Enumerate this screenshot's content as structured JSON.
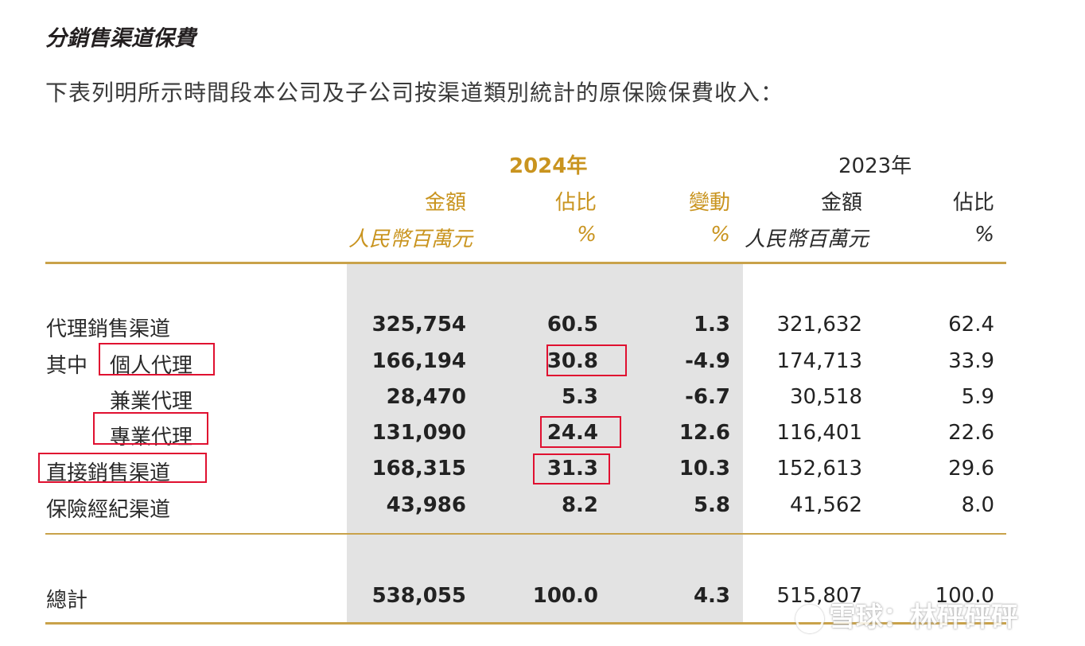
{
  "title": "分銷售渠道保費",
  "intro": "下表列明所示時間段本公司及子公司按渠道類別統計的原保險保費收入：",
  "header": {
    "year_2024": "2024年",
    "year_2023": "2023年",
    "col_amount_2024": "金額",
    "col_share_2024": "佔比",
    "col_change": "變動",
    "col_amount_2023": "金額",
    "col_share_2023": "佔比",
    "unit_amount_2024": "人民幣百萬元",
    "unit_share_2024": "%",
    "unit_change": "%",
    "unit_amount_2023": "人民幣百萬元",
    "unit_share_2023": "%"
  },
  "rows": [
    {
      "prefix": "",
      "label": "代理銷售渠道",
      "amt24": "325,754",
      "pct24": "60.5",
      "chg": "1.3",
      "amt23": "321,632",
      "pct23": "62.4"
    },
    {
      "prefix": "其中",
      "label": "個人代理",
      "amt24": "166,194",
      "pct24": "30.8",
      "chg": "-4.9",
      "amt23": "174,713",
      "pct23": "33.9"
    },
    {
      "prefix": "",
      "label": "兼業代理",
      "amt24": "28,470",
      "pct24": "5.3",
      "chg": "-6.7",
      "amt23": "30,518",
      "pct23": "5.9"
    },
    {
      "prefix": "",
      "label": "專業代理",
      "amt24": "131,090",
      "pct24": "24.4",
      "chg": "12.6",
      "amt23": "116,401",
      "pct23": "22.6"
    },
    {
      "prefix": "",
      "label": "直接銷售渠道",
      "amt24": "168,315",
      "pct24": "31.3",
      "chg": "10.3",
      "amt23": "152,613",
      "pct23": "29.6"
    },
    {
      "prefix": "",
      "label": "保險經紀渠道",
      "amt24": "43,986",
      "pct24": "8.2",
      "chg": "5.8",
      "amt23": "41,562",
      "pct23": "8.0"
    }
  ],
  "total": {
    "label": "總計",
    "amt24": "538,055",
    "pct24": "100.0",
    "chg": "4.3",
    "amt23": "515,807",
    "pct23": "100.0"
  },
  "watermark": "雪球：林砰砰砰",
  "colors": {
    "accent_gold": "#c9941f",
    "rule_gold": "#c9a24a",
    "highlight_box": "#e01030",
    "shade": "#e3e3e3"
  }
}
